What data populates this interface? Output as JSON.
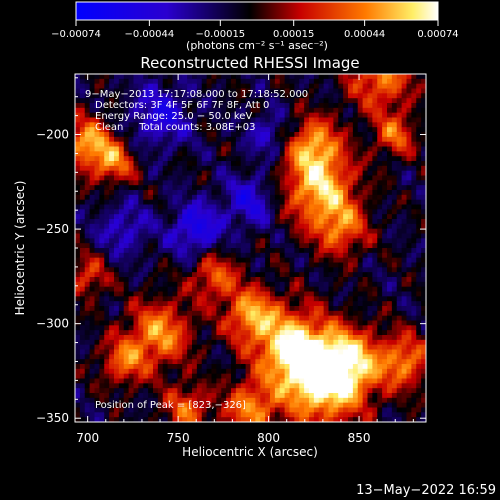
{
  "chart_data": {
    "type": "heatmap",
    "title": "Reconstructed RHESSI Image",
    "xlabel": "Heliocentric X (arcsec)",
    "ylabel": "Heliocentric Y (arcsec)",
    "xlim": [
      693,
      887
    ],
    "ylim": [
      -352,
      -168
    ],
    "x_ticks": [
      700,
      750,
      800,
      850
    ],
    "x_tick_labels": [
      "700",
      "750",
      "800",
      "850"
    ],
    "y_ticks": [
      -200,
      -250,
      -300,
      -350
    ],
    "y_tick_labels": [
      "−200",
      "−250",
      "−300",
      "−350"
    ],
    "colorbar": {
      "ticks": [
        -0.00074,
        -0.00044,
        -0.00015,
        0.00015,
        0.00044,
        0.00074
      ],
      "tick_labels": [
        "−0.00074",
        "−0.00044",
        "−0.00015",
        "0.00015",
        "0.00044",
        "0.00074"
      ],
      "range": [
        -0.00074,
        0.00074
      ],
      "unit_label": "(photons cm⁻² s⁻¹ asec⁻²)"
    },
    "annotations": [
      "9−May−2013 17:17:08.000 to 17:18:52.000",
      "Detectors: 3F 4F 5F 6F 7F 8F, Att 0",
      "Energy Range: 25.0 − 50.0 keV",
      "Clean     Total counts: 3.08E+03"
    ],
    "peak_label": "Position of Peak = [823,−326]",
    "peak": {
      "x": 823,
      "y": -326
    },
    "grid": false,
    "colormap_colors": [
      "#0000ff",
      "#000000",
      "#c00000",
      "#ff8000",
      "#ffff80",
      "#ffffff"
    ]
  },
  "footer": {
    "date": "13−May−2022 16:59"
  }
}
